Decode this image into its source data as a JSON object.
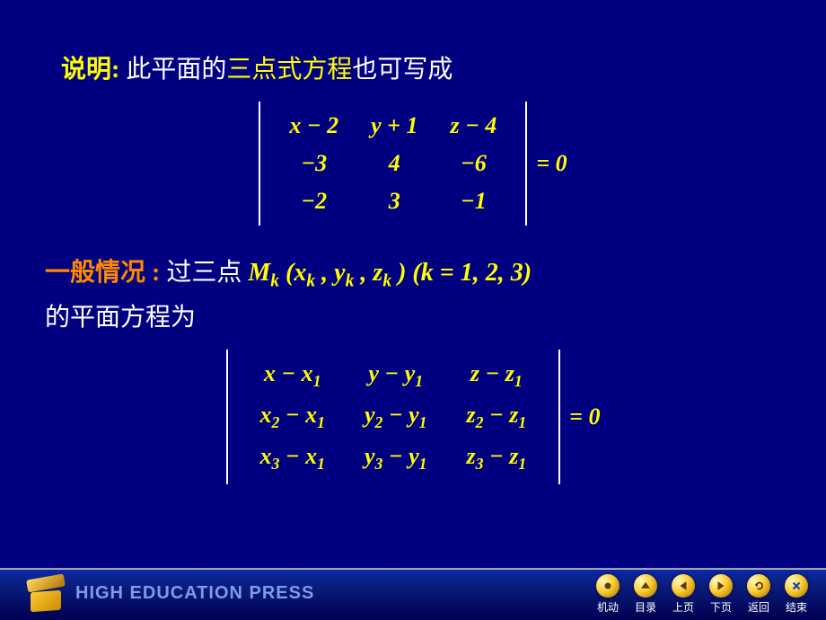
{
  "slide": {
    "line1": {
      "label": "说明:",
      "pre": "此平面的",
      "highlight": "三点式方程",
      "post": "也可写成"
    },
    "det1": {
      "rows": [
        [
          "x − 2",
          "y + 1",
          "z − 4"
        ],
        [
          "−3",
          "4",
          "−6"
        ],
        [
          "−2",
          "3",
          "−1"
        ]
      ],
      "rhs": "= 0"
    },
    "line2": {
      "label": "一般情况 :",
      "pre": "过三点 ",
      "math": "M_k (x_k , y_k , z_k )  (k = 1, 2, 3)"
    },
    "line3": "的平面方程为",
    "det2": {
      "rows": [
        [
          "x − x_1",
          "y − y_1",
          "z − z_1"
        ],
        [
          "x_2 − x_1",
          "y_2 − y_1",
          "z_2 − z_1"
        ],
        [
          "x_3 − x_1",
          "y_3 − y_1",
          "z_3 − z_1"
        ]
      ],
      "rhs": "= 0"
    }
  },
  "footer": {
    "brand": "HIGH EDUCATION PRESS",
    "nav": [
      {
        "key": "motion",
        "label": "机动",
        "icon": "circle"
      },
      {
        "key": "toc",
        "label": "目录",
        "icon": "up"
      },
      {
        "key": "prev",
        "label": "上页",
        "icon": "left"
      },
      {
        "key": "next",
        "label": "下页",
        "icon": "right"
      },
      {
        "key": "back",
        "label": "返回",
        "icon": "undo"
      },
      {
        "key": "end",
        "label": "结束",
        "icon": "close"
      }
    ]
  },
  "colors": {
    "bg": "#000080",
    "accent": "#ffff00",
    "accent2": "#ff8800",
    "text": "#ffffff",
    "brand": "#7d9be8",
    "gold1": "#ffcc33",
    "gold2": "#aa7700"
  }
}
